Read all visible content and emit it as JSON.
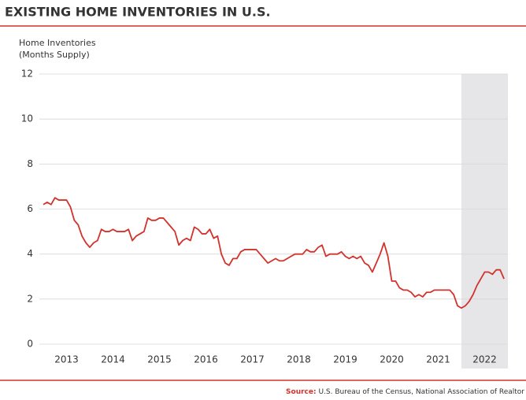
{
  "chart_data": {
    "type": "line",
    "title": "EXISTING HOME INVENTORIES IN U.S.",
    "ylabel": [
      "Home Inventories",
      "(Months Supply)"
    ],
    "source_label": "Source:",
    "source": "U.S. Bureau of the Census, National Association of Realtor",
    "color": "#d2322d",
    "shade_color": "#e6e6e8",
    "shaded_range": [
      2022,
      2023
    ],
    "x": [
      2013,
      2013.083,
      2013.167,
      2013.25,
      2013.333,
      2013.417,
      2013.5,
      2013.583,
      2013.667,
      2013.75,
      2013.833,
      2013.917,
      2014,
      2014.083,
      2014.167,
      2014.25,
      2014.333,
      2014.417,
      2014.5,
      2014.583,
      2014.667,
      2014.75,
      2014.833,
      2014.917,
      2015,
      2015.083,
      2015.167,
      2015.25,
      2015.333,
      2015.417,
      2015.5,
      2015.583,
      2015.667,
      2015.75,
      2015.833,
      2015.917,
      2016,
      2016.083,
      2016.167,
      2016.25,
      2016.333,
      2016.417,
      2016.5,
      2016.583,
      2016.667,
      2016.75,
      2016.833,
      2016.917,
      2017,
      2017.083,
      2017.167,
      2017.25,
      2017.333,
      2017.417,
      2017.5,
      2017.583,
      2017.667,
      2017.75,
      2017.833,
      2017.917,
      2018,
      2018.083,
      2018.167,
      2018.25,
      2018.333,
      2018.417,
      2018.5,
      2018.583,
      2018.667,
      2018.75,
      2018.833,
      2018.917,
      2019,
      2019.083,
      2019.167,
      2019.25,
      2019.333,
      2019.417,
      2019.5,
      2019.583,
      2019.667,
      2019.75,
      2019.833,
      2019.917,
      2020,
      2020.083,
      2020.167,
      2020.25,
      2020.333,
      2020.417,
      2020.5,
      2020.583,
      2020.667,
      2020.75,
      2020.833,
      2020.917,
      2021,
      2021.083,
      2021.167,
      2021.25,
      2021.333,
      2021.417,
      2021.5,
      2021.583,
      2021.667,
      2021.75,
      2021.833,
      2021.917,
      2022,
      2022.083,
      2022.167,
      2022.25,
      2022.333,
      2022.417,
      2022.5,
      2022.583,
      2022.667,
      2022.75,
      2022.833,
      2022.917
    ],
    "values": [
      6.2,
      6.3,
      6.2,
      6.5,
      6.4,
      6.4,
      6.4,
      6.1,
      5.5,
      5.3,
      4.8,
      4.5,
      4.3,
      4.5,
      4.6,
      5.1,
      5.0,
      5.0,
      5.1,
      5.0,
      5.0,
      5.0,
      5.1,
      4.6,
      4.8,
      4.9,
      5.0,
      5.6,
      5.5,
      5.5,
      5.6,
      5.6,
      5.4,
      5.2,
      5.0,
      4.4,
      4.6,
      4.7,
      4.6,
      5.2,
      5.1,
      4.9,
      4.9,
      5.1,
      4.7,
      4.8,
      4.0,
      3.6,
      3.5,
      3.8,
      3.8,
      4.1,
      4.2,
      4.2,
      4.2,
      4.2,
      4.0,
      3.8,
      3.6,
      3.7,
      3.8,
      3.7,
      3.7,
      3.8,
      3.9,
      4.0,
      4.0,
      4.0,
      4.2,
      4.1,
      4.1,
      4.3,
      4.4,
      3.9,
      4.0,
      4.0,
      4.0,
      4.1,
      3.9,
      3.8,
      3.9,
      3.8,
      3.9,
      3.6,
      3.5,
      3.2,
      3.6,
      4.0,
      4.5,
      3.9,
      2.8,
      2.8,
      2.5,
      2.4,
      2.4,
      2.3,
      2.1,
      2.2,
      2.1,
      2.3,
      2.3,
      2.4,
      2.4,
      2.4,
      2.4,
      2.4,
      2.2,
      1.7,
      1.6,
      1.7,
      1.9,
      2.2,
      2.6,
      2.9,
      3.2,
      3.2,
      3.1,
      3.3,
      3.3,
      2.9
    ],
    "xlim": [
      2013,
      2023
    ],
    "xticks": [
      {
        "value": 2013.5,
        "label": "2013"
      },
      {
        "value": 2014.5,
        "label": "2014"
      },
      {
        "value": 2015.5,
        "label": "2015"
      },
      {
        "value": 2016.5,
        "label": "2016"
      },
      {
        "value": 2017.5,
        "label": "2017"
      },
      {
        "value": 2018.5,
        "label": "2018"
      },
      {
        "value": 2019.5,
        "label": "2019"
      },
      {
        "value": 2020.5,
        "label": "2020"
      },
      {
        "value": 2021.5,
        "label": "2021"
      },
      {
        "value": 2022.5,
        "label": "2022"
      }
    ],
    "ylim": [
      0,
      12
    ],
    "yticks": [
      0,
      2,
      4,
      6,
      8,
      10,
      12
    ],
    "grid": true
  }
}
